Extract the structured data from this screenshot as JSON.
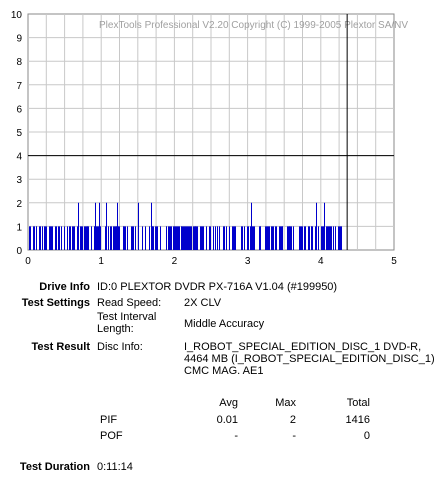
{
  "chart_data": {
    "type": "bar",
    "watermark": "PlexTools Professional V2.20 Copyright (C) 1999-2005 Plextor SA/NV",
    "x_ticks": [
      "0",
      "1",
      "2",
      "3",
      "4",
      "5"
    ],
    "y_ticks": [
      "0",
      "1",
      "2",
      "3",
      "4",
      "5",
      "6",
      "7",
      "8",
      "9",
      "10"
    ],
    "xlim": [
      0,
      5
    ],
    "ylim": [
      0,
      10
    ],
    "threshold_y": 4,
    "end_marker_x": 4.36,
    "bar_color": "#0000cc",
    "spikes": [
      {
        "x": 0.68,
        "y": 2
      },
      {
        "x": 0.92,
        "y": 2
      },
      {
        "x": 0.97,
        "y": 2
      },
      {
        "x": 1.07,
        "y": 2
      },
      {
        "x": 1.22,
        "y": 2
      },
      {
        "x": 1.5,
        "y": 2
      },
      {
        "x": 1.68,
        "y": 2
      },
      {
        "x": 3.04,
        "y": 2
      },
      {
        "x": 3.93,
        "y": 2
      },
      {
        "x": 4.04,
        "y": 2
      }
    ],
    "ones_start": 0.02,
    "ones_end": 4.36
  },
  "info": {
    "drive_info_label": "Drive Info",
    "drive_info_value": "ID:0 PLEXTOR DVDR PX-716A V1.04 (#199950)",
    "test_settings_label": "Test Settings",
    "read_speed_label": "Read Speed:",
    "read_speed_value": "2X CLV",
    "interval_label_1": "Test Interval",
    "interval_label_2": "Length:",
    "interval_value": "Middle Accuracy",
    "test_result_label": "Test Result",
    "disc_info_label": "Disc Info:",
    "disc_info_1": "I_ROBOT_SPECIAL_EDITION_DISC_1 DVD-R,",
    "disc_info_2": "4464 MB (I_ROBOT_SPECIAL_EDITION_DISC_1)",
    "disc_info_3": "CMC MAG. AE1"
  },
  "stats": {
    "headers": {
      "avg": "Avg",
      "max": "Max",
      "total": "Total"
    },
    "pif": {
      "label": "PIF",
      "avg": "0.01",
      "max": "2",
      "total": "1416"
    },
    "pof": {
      "label": "POF",
      "avg": "-",
      "max": "-",
      "total": "0"
    }
  },
  "duration": {
    "label": "Test Duration",
    "value": "0:11:14"
  }
}
